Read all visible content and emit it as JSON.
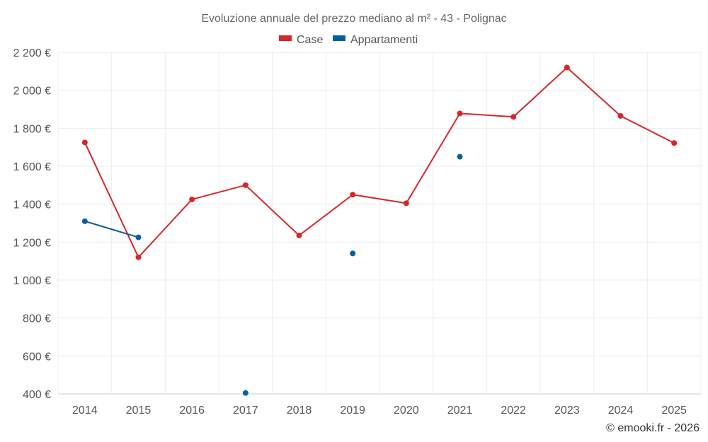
{
  "chart_data": {
    "type": "line",
    "title": "Evoluzione annuale del prezzo mediano al m² - 43 - Polignac",
    "categories": [
      "2014",
      "2015",
      "2016",
      "2017",
      "2018",
      "2019",
      "2020",
      "2021",
      "2022",
      "2023",
      "2024",
      "2025"
    ],
    "series": [
      {
        "name": "Case",
        "color": "#d62728",
        "values": [
          1725,
          1120,
          1425,
          1500,
          1235,
          1450,
          1405,
          1878,
          1860,
          2120,
          1865,
          1722
        ]
      },
      {
        "name": "Appartamenti",
        "color": "#0a5e9c",
        "values": [
          1310,
          1225,
          null,
          405,
          null,
          1140,
          null,
          1650,
          null,
          null,
          null,
          null
        ]
      }
    ],
    "ylim": [
      400,
      2200
    ],
    "yticks": [
      400,
      600,
      800,
      1000,
      1200,
      1400,
      1600,
      1800,
      2000,
      2200
    ],
    "ytick_labels": [
      "400 €",
      "600 €",
      "800 €",
      "1 000 €",
      "1 200 €",
      "1 400 €",
      "1 600 €",
      "1 800 €",
      "2 000 €",
      "2 200 €"
    ],
    "legend_position": "top-center",
    "grid": true
  },
  "credit": "© emooki.fr - 2026"
}
